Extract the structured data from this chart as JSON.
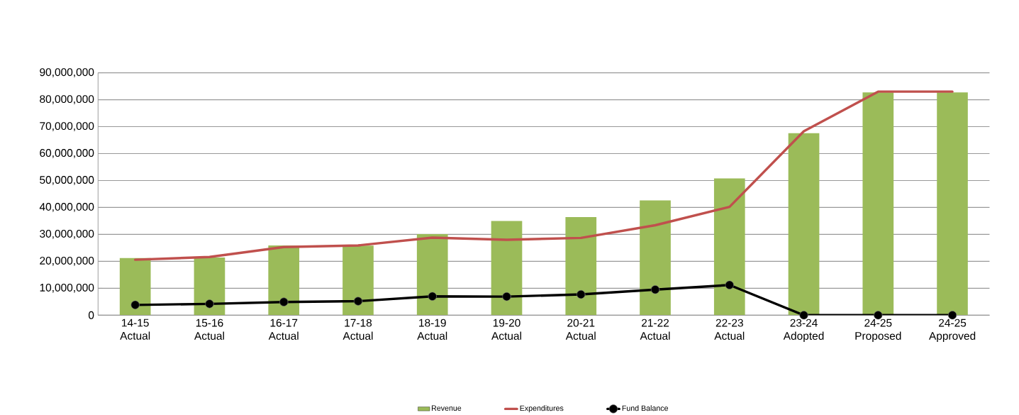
{
  "chart_data": {
    "type": "bar",
    "categories": [
      "14-15 Actual",
      "15-16 Actual",
      "16-17 Actual",
      "17-18 Actual",
      "18-19 Actual",
      "19-20 Actual",
      "20-21 Actual",
      "21-22 Actual",
      "22-23 Actual",
      "23-24 Adopted",
      "24-25 Proposed",
      "24-25 Approved"
    ],
    "series": [
      {
        "name": "Revenue",
        "color": "#9bbb59",
        "values": [
          21200000,
          21400000,
          25900000,
          25800000,
          30100000,
          35000000,
          36400000,
          42600000,
          50800000,
          67600000,
          82700000,
          82700000
        ]
      },
      {
        "name": "Expenditures",
        "type": "line",
        "color": "#c0504d",
        "values": [
          20600000,
          21600000,
          25300000,
          25900000,
          28800000,
          28000000,
          28700000,
          33400000,
          40200000,
          68300000,
          83000000,
          83000000
        ]
      },
      {
        "name": "Fund Balance",
        "type": "line",
        "color": "#000000",
        "marker": "circle",
        "values": [
          3800000,
          4200000,
          4900000,
          5200000,
          7000000,
          6900000,
          7700000,
          9500000,
          11200000,
          0,
          0,
          0
        ]
      }
    ],
    "ylim": [
      0,
      90000000
    ],
    "yticks": [
      {
        "value": 0,
        "label": "0"
      },
      {
        "value": 10000000,
        "label": "10,000,000"
      },
      {
        "value": 20000000,
        "label": "20,000,000"
      },
      {
        "value": 30000000,
        "label": "30,000,000"
      },
      {
        "value": 40000000,
        "label": "40,000,000"
      },
      {
        "value": 50000000,
        "label": "50,000,000"
      },
      {
        "value": 60000000,
        "label": "60,000,000"
      },
      {
        "value": 70000000,
        "label": "70,000,000"
      },
      {
        "value": 80000000,
        "label": "80,000,000"
      },
      {
        "value": 90000000,
        "label": "90,000,000"
      }
    ],
    "grid": "y",
    "legend": "bottom"
  }
}
